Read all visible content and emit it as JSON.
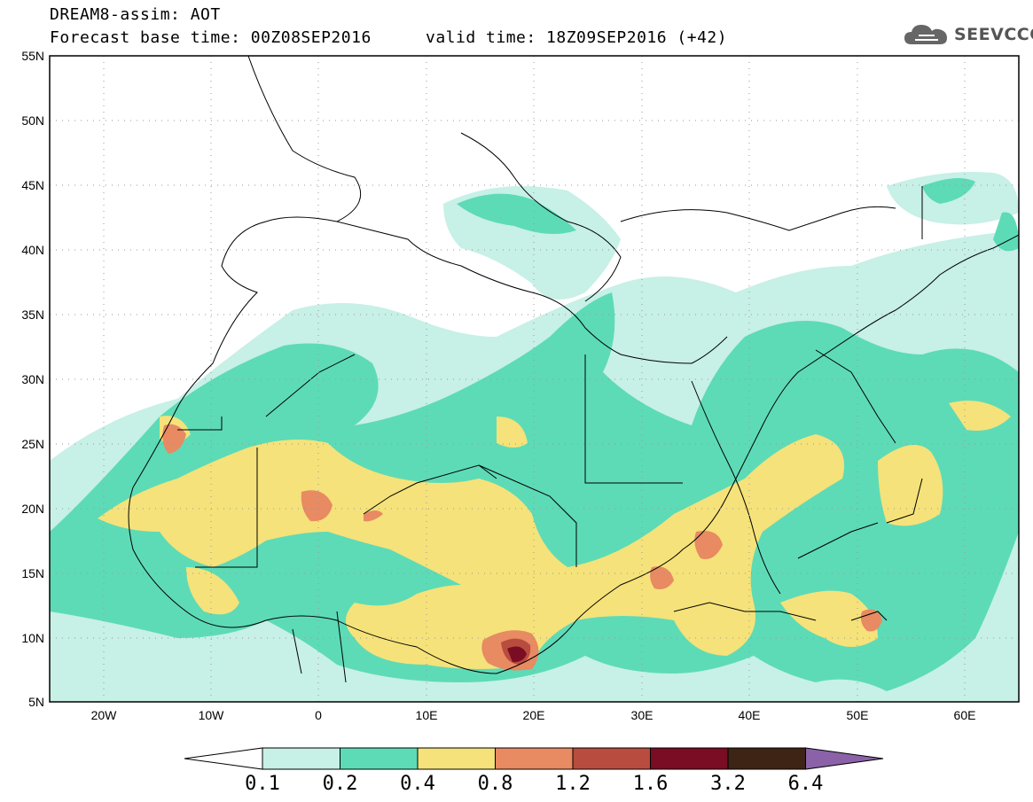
{
  "header": {
    "title": "DREAM8-assim: AOT",
    "base_time": "Forecast base time: 00Z08SEP2016",
    "valid_time": "valid time: 18Z09SEP2016 (+42)"
  },
  "logo": {
    "text": "SEEVCCC",
    "icon": "cloud-icon"
  },
  "map": {
    "lat_labels": [
      "55N",
      "50N",
      "45N",
      "40N",
      "35N",
      "30N",
      "25N",
      "20N",
      "15N",
      "10N",
      "5N"
    ],
    "lon_labels": [
      "20W",
      "10W",
      "0",
      "10E",
      "20E",
      "30E",
      "40E",
      "50E",
      "60E"
    ],
    "lon_range": [
      -25,
      65
    ],
    "lat_range": [
      5,
      55
    ]
  },
  "colorbar": {
    "labels": [
      "0.1",
      "0.2",
      "0.4",
      "0.8",
      "1.2",
      "1.6",
      "3.2",
      "6.4"
    ],
    "colors": [
      "#ffffff",
      "#c7f0e6",
      "#5ddbb6",
      "#f5e27a",
      "#e88a62",
      "#b84c3e",
      "#7a0c23",
      "#3d2414",
      "#8b62a8"
    ]
  }
}
